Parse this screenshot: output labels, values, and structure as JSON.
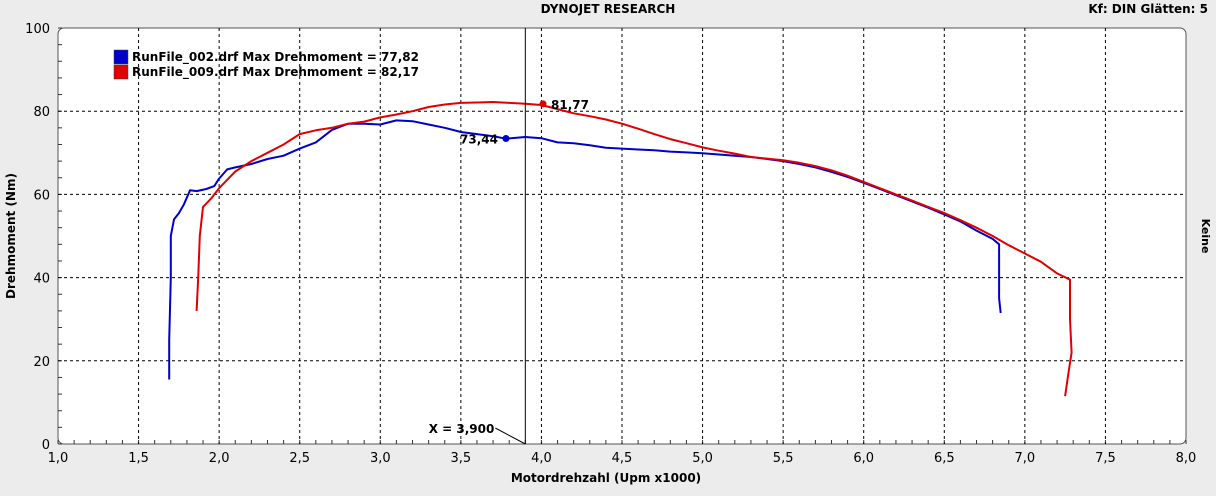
{
  "header": {
    "title": "DYNOJET RESEARCH",
    "right_info": "Kf: DIN  Glätten: 5"
  },
  "chart_data": {
    "type": "line",
    "xlabel": "Motordrehzahl (Upm x1000)",
    "ylabel": "Drehmoment (Nm)",
    "right_label": "Keine",
    "xlim": [
      1.0,
      8.0
    ],
    "ylim": [
      0,
      100
    ],
    "x_ticks": [
      "1,0",
      "1,5",
      "2,0",
      "2,5",
      "3,0",
      "3,5",
      "4,0",
      "4,5",
      "5,0",
      "5,5",
      "6,0",
      "6,5",
      "7,0",
      "7,5",
      "8,0"
    ],
    "x_tick_values": [
      1.0,
      1.5,
      2.0,
      2.5,
      3.0,
      3.5,
      4.0,
      4.5,
      5.0,
      5.5,
      6.0,
      6.5,
      7.0,
      7.5,
      8.0
    ],
    "y_ticks": [
      "0",
      "20",
      "40",
      "60",
      "80",
      "100"
    ],
    "y_tick_values": [
      0,
      20,
      40,
      60,
      80,
      100
    ],
    "grid": true,
    "legend_position": "top-left",
    "cursor": {
      "x": 3.9,
      "label": "X = 3,900"
    },
    "series": [
      {
        "name": "RunFile_002.drf Max Drehmoment = 77,82",
        "color": "#0000cc",
        "marker": {
          "x": 3.78,
          "y": 73.44,
          "label": "73,44"
        },
        "points": [
          [
            1.69,
            15.5
          ],
          [
            1.69,
            25
          ],
          [
            1.7,
            40
          ],
          [
            1.7,
            50
          ],
          [
            1.72,
            54
          ],
          [
            1.75,
            55.5
          ],
          [
            1.78,
            57.5
          ],
          [
            1.82,
            61
          ],
          [
            1.86,
            60.8
          ],
          [
            1.92,
            61.3
          ],
          [
            1.97,
            62
          ],
          [
            2.0,
            63.8
          ],
          [
            2.05,
            66
          ],
          [
            2.1,
            66.5
          ],
          [
            2.2,
            67.3
          ],
          [
            2.3,
            68.5
          ],
          [
            2.4,
            69.3
          ],
          [
            2.5,
            71
          ],
          [
            2.6,
            72.5
          ],
          [
            2.7,
            75.5
          ],
          [
            2.8,
            77
          ],
          [
            2.9,
            77
          ],
          [
            3.0,
            76.8
          ],
          [
            3.1,
            77.8
          ],
          [
            3.2,
            77.6
          ],
          [
            3.3,
            76.8
          ],
          [
            3.4,
            76
          ],
          [
            3.5,
            75
          ],
          [
            3.6,
            74.5
          ],
          [
            3.7,
            74
          ],
          [
            3.78,
            73.4
          ],
          [
            3.9,
            73.8
          ],
          [
            4.0,
            73.5
          ],
          [
            4.1,
            72.5
          ],
          [
            4.2,
            72.3
          ],
          [
            4.3,
            71.8
          ],
          [
            4.4,
            71.2
          ],
          [
            4.5,
            71
          ],
          [
            4.6,
            70.8
          ],
          [
            4.7,
            70.6
          ],
          [
            4.8,
            70.3
          ],
          [
            4.9,
            70.1
          ],
          [
            5.0,
            69.9
          ],
          [
            5.1,
            69.6
          ],
          [
            5.2,
            69.3
          ],
          [
            5.3,
            69
          ],
          [
            5.4,
            68.5
          ],
          [
            5.5,
            68
          ],
          [
            5.6,
            67.3
          ],
          [
            5.7,
            66.5
          ],
          [
            5.8,
            65.4
          ],
          [
            5.9,
            64.2
          ],
          [
            6.0,
            62.8
          ],
          [
            6.1,
            61.3
          ],
          [
            6.2,
            59.8
          ],
          [
            6.3,
            58.3
          ],
          [
            6.4,
            56.8
          ],
          [
            6.5,
            55.2
          ],
          [
            6.6,
            53.5
          ],
          [
            6.7,
            51.3
          ],
          [
            6.8,
            49.3
          ],
          [
            6.84,
            48
          ],
          [
            6.84,
            40
          ],
          [
            6.84,
            35
          ],
          [
            6.85,
            31.5
          ]
        ]
      },
      {
        "name": "RunFile_009.drf Max Drehmoment = 82,17",
        "color": "#e00000",
        "marker": {
          "x": 4.01,
          "y": 81.77,
          "label": "81,77"
        },
        "points": [
          [
            1.86,
            32
          ],
          [
            1.87,
            40
          ],
          [
            1.88,
            50
          ],
          [
            1.9,
            57
          ],
          [
            1.95,
            59
          ],
          [
            2.0,
            61.5
          ],
          [
            2.05,
            63.5
          ],
          [
            2.1,
            65.5
          ],
          [
            2.2,
            68
          ],
          [
            2.3,
            70
          ],
          [
            2.4,
            72
          ],
          [
            2.5,
            74.5
          ],
          [
            2.6,
            75.4
          ],
          [
            2.7,
            76
          ],
          [
            2.8,
            77
          ],
          [
            2.9,
            77.5
          ],
          [
            3.0,
            78.5
          ],
          [
            3.1,
            79.2
          ],
          [
            3.2,
            80
          ],
          [
            3.3,
            81
          ],
          [
            3.4,
            81.6
          ],
          [
            3.5,
            82
          ],
          [
            3.6,
            82.1
          ],
          [
            3.7,
            82.2
          ],
          [
            3.8,
            82
          ],
          [
            3.9,
            81.8
          ],
          [
            4.0,
            81.5
          ],
          [
            4.1,
            80.5
          ],
          [
            4.2,
            79.5
          ],
          [
            4.3,
            78.8
          ],
          [
            4.4,
            78
          ],
          [
            4.5,
            77
          ],
          [
            4.6,
            75.8
          ],
          [
            4.7,
            74.5
          ],
          [
            4.8,
            73.3
          ],
          [
            4.9,
            72.3
          ],
          [
            5.0,
            71.3
          ],
          [
            5.1,
            70.5
          ],
          [
            5.2,
            69.8
          ],
          [
            5.3,
            69
          ],
          [
            5.4,
            68.6
          ],
          [
            5.5,
            68.2
          ],
          [
            5.6,
            67.6
          ],
          [
            5.7,
            66.8
          ],
          [
            5.8,
            65.8
          ],
          [
            5.9,
            64.5
          ],
          [
            6.0,
            63
          ],
          [
            6.1,
            61.5
          ],
          [
            6.2,
            60
          ],
          [
            6.3,
            58.5
          ],
          [
            6.4,
            57
          ],
          [
            6.5,
            55.5
          ],
          [
            6.6,
            53.8
          ],
          [
            6.7,
            52
          ],
          [
            6.8,
            50
          ],
          [
            6.9,
            47.8
          ],
          [
            7.0,
            45.8
          ],
          [
            7.1,
            43.8
          ],
          [
            7.2,
            41
          ],
          [
            7.28,
            39.5
          ],
          [
            7.28,
            30
          ],
          [
            7.29,
            22
          ],
          [
            7.27,
            17
          ],
          [
            7.25,
            11.5
          ]
        ]
      }
    ]
  }
}
